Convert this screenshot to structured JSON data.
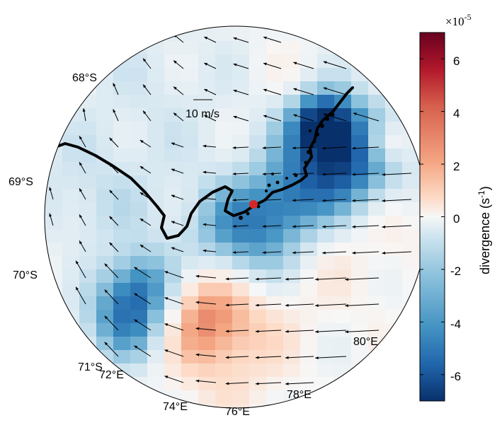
{
  "map": {
    "lat_labels": [
      "68°S",
      "69°S",
      "70°S",
      "71°S"
    ],
    "lon_labels": [
      "72°E",
      "74°E",
      "76°E",
      "78°E",
      "80°E"
    ],
    "scale_vector_label": "10 m/s",
    "station_color": "#d62728",
    "coast_color": "#000000"
  },
  "colorbar": {
    "title": "divergence (s",
    "title_exp": "-1",
    "title_end": ")",
    "multiplier_base": "×10",
    "multiplier_exp": "-5",
    "ticks": [
      "6",
      "4",
      "2",
      "0",
      "-2",
      "-4",
      "-6"
    ],
    "range": [
      -7,
      7
    ],
    "colormap": [
      "#08306b",
      "#2166ac",
      "#4393c3",
      "#92c5de",
      "#d1e5f0",
      "#f7f7f7",
      "#fddbc7",
      "#f4a582",
      "#d6604d",
      "#b2182b",
      "#67001f"
    ]
  }
}
